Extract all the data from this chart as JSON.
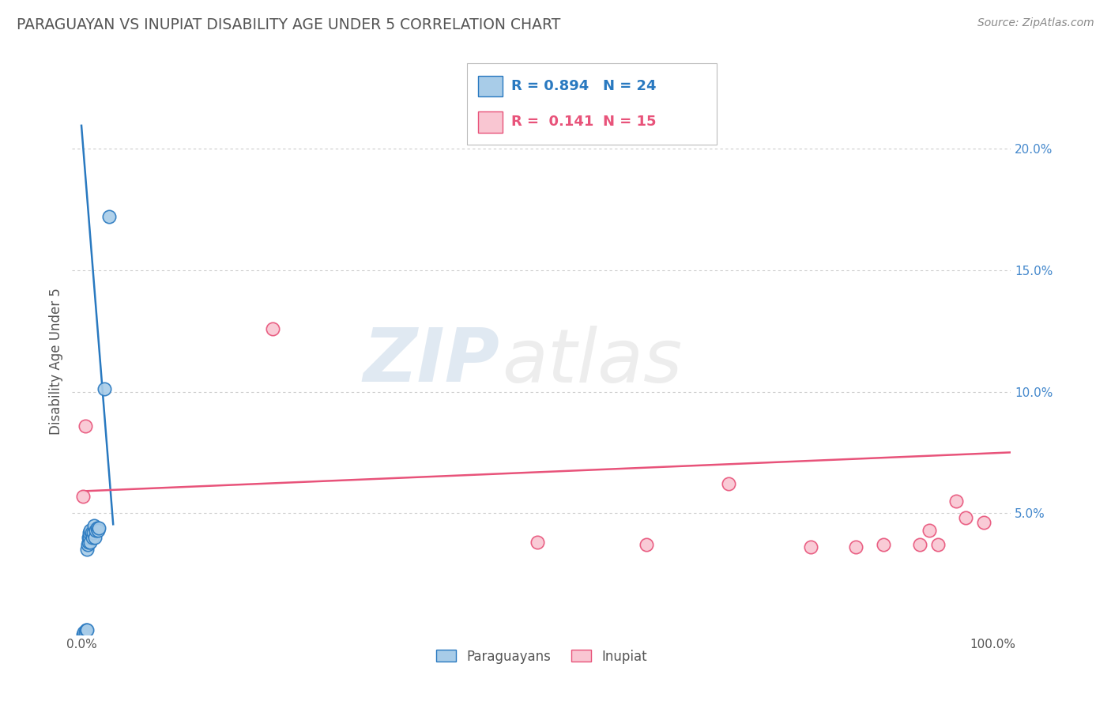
{
  "title": "PARAGUAYAN VS INUPIAT DISABILITY AGE UNDER 5 CORRELATION CHART",
  "source": "Source: ZipAtlas.com",
  "ylabel": "Disability Age Under 5",
  "xlim": [
    -0.01,
    1.02
  ],
  "ylim": [
    0,
    0.225
  ],
  "yticks_right": [
    0.05,
    0.1,
    0.15,
    0.2
  ],
  "ytick_labels_right": [
    "5.0%",
    "10.0%",
    "15.0%",
    "20.0%"
  ],
  "paraguayan_color": "#a8cce8",
  "inupiat_color": "#f9c6d2",
  "trend_paraguayan_color": "#2979c0",
  "trend_inupiat_color": "#e8537a",
  "legend_r_paraguayan": "R = 0.894",
  "legend_n_paraguayan": "N = 24",
  "legend_r_inupiat": "R =  0.141",
  "legend_n_inupiat": "N = 15",
  "paraguayan_x": [
    0.002,
    0.003,
    0.004,
    0.005,
    0.006,
    0.006,
    0.007,
    0.008,
    0.008,
    0.009,
    0.009,
    0.01,
    0.01,
    0.011,
    0.012,
    0.013,
    0.014,
    0.015,
    0.016,
    0.017,
    0.018,
    0.019,
    0.025,
    0.03
  ],
  "paraguayan_y": [
    0.0,
    0.001,
    0.001,
    0.002,
    0.002,
    0.035,
    0.037,
    0.038,
    0.04,
    0.04,
    0.042,
    0.038,
    0.043,
    0.042,
    0.04,
    0.042,
    0.045,
    0.04,
    0.043,
    0.044,
    0.043,
    0.044,
    0.101,
    0.172
  ],
  "inupiat_x": [
    0.002,
    0.004,
    0.21,
    0.5,
    0.62,
    0.71,
    0.8,
    0.85,
    0.88,
    0.92,
    0.93,
    0.94,
    0.96,
    0.97,
    0.99
  ],
  "inupiat_y": [
    0.057,
    0.086,
    0.126,
    0.038,
    0.037,
    0.062,
    0.036,
    0.036,
    0.037,
    0.037,
    0.043,
    0.037,
    0.055,
    0.048,
    0.046
  ],
  "trend_par_x0": 0.0,
  "trend_par_x1": 0.035,
  "trend_par_y0": 0.21,
  "trend_par_y1": 0.045,
  "trend_inu_x0": 0.0,
  "trend_inu_x1": 1.02,
  "trend_inu_y0": 0.059,
  "trend_inu_y1": 0.075,
  "watermark_zip": "ZIP",
  "watermark_atlas": "atlas",
  "background_color": "#ffffff",
  "grid_color": "#cccccc",
  "title_color": "#555555"
}
